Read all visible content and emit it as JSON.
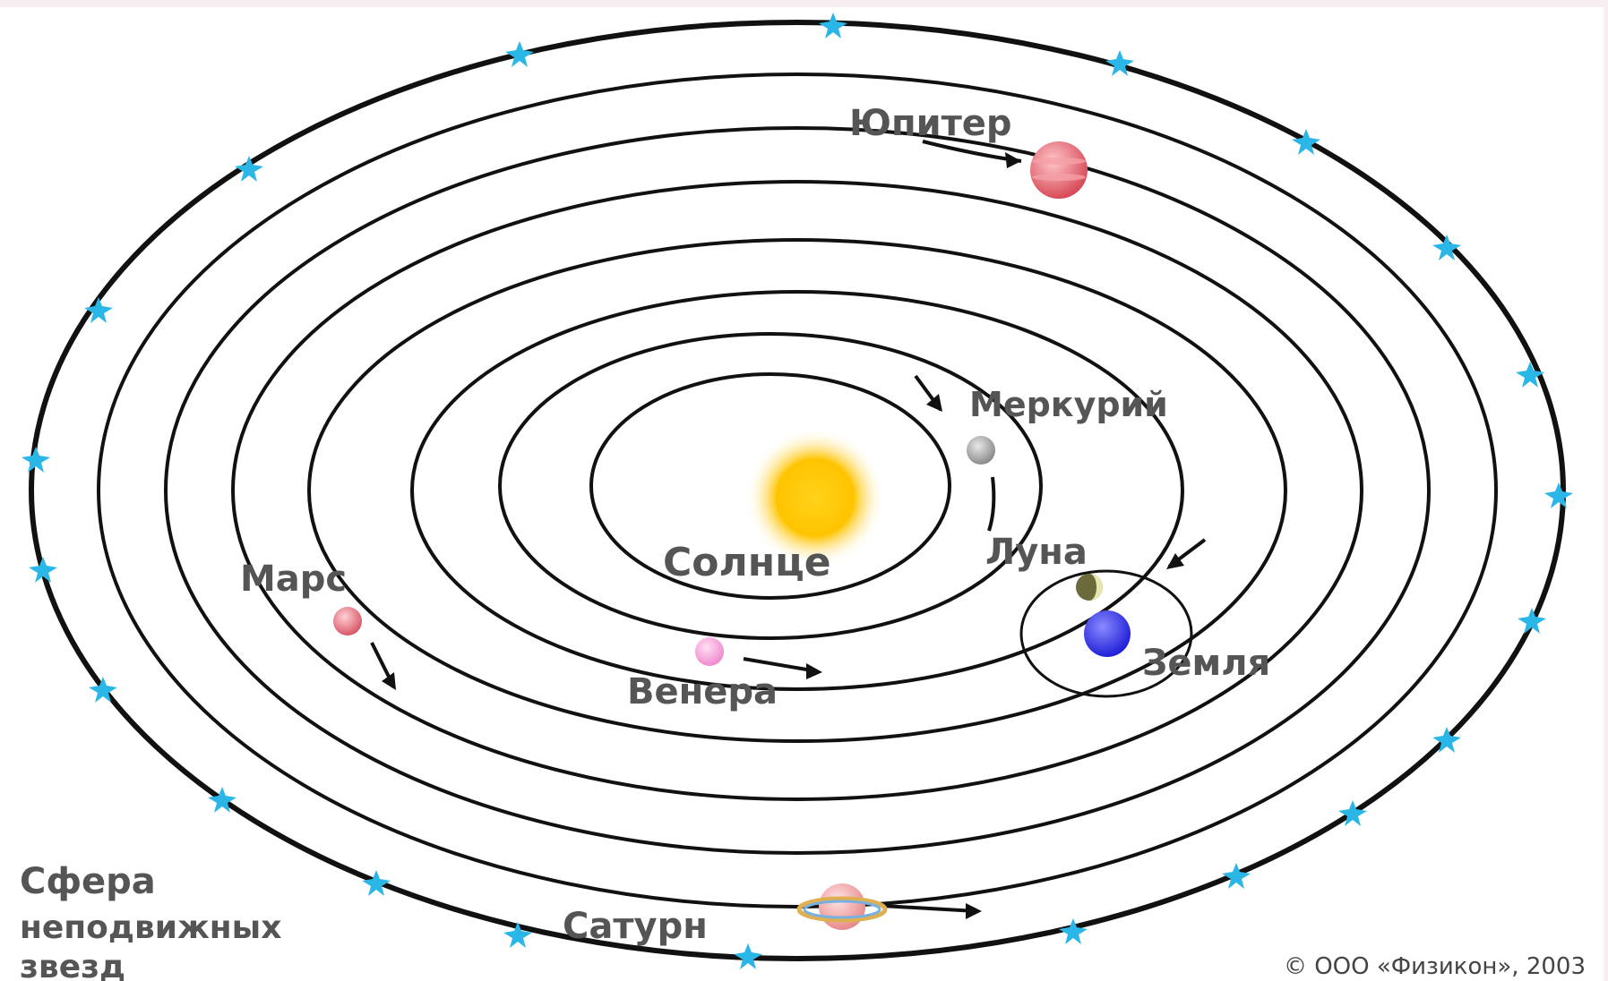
{
  "labels": {
    "sun": "Солнце",
    "mercury": "Меркурий",
    "venus": "Венера",
    "moon": "Луна",
    "earth": "Земля",
    "mars": "Марс",
    "jupiter": "Юпитер",
    "saturn": "Сатурн"
  },
  "caption": {
    "line1": "Сфера",
    "line2": "неподвижных",
    "line3": "звезд"
  },
  "copyright": "© ООО «Физикон», 2003",
  "colors": {
    "sun": "#ffc200",
    "mercury": "#9a9a9a",
    "venus": "#f59ad6",
    "moon": "#6b6a3a",
    "earth": "#3a3af0",
    "mars": "#e06a78",
    "jupiter": "#e25a66",
    "saturn": "#f0a0a0",
    "stars": "#2ab6e6"
  }
}
